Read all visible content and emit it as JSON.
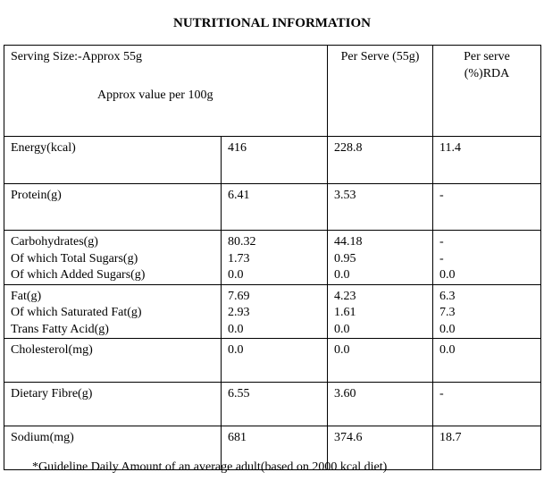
{
  "title": "NUTRITIONAL INFORMATION",
  "header": {
    "serving_size": "Serving Size:-Approx 55g",
    "per_100g": "Approx value per 100g",
    "per_serve": "Per Serve (55g)",
    "rda": [
      "Per serve",
      "(%)RDA"
    ]
  },
  "table": {
    "rows": [
      [
        [
          "Energy(kcal)"
        ],
        [
          "416"
        ],
        [
          "228.8"
        ],
        [
          "11.4"
        ]
      ],
      [
        [
          "Protein(g)"
        ],
        [
          "6.41"
        ],
        [
          "3.53"
        ],
        [
          "-"
        ]
      ],
      [
        [
          "Carbohydrates(g)",
          "Of which Total Sugars(g)",
          "Of which Added Sugars(g)"
        ],
        [
          "80.32",
          "1.73",
          "0.0"
        ],
        [
          "44.18",
          "0.95",
          "0.0"
        ],
        [
          "-",
          "-",
          "0.0"
        ]
      ],
      [
        [
          "Fat(g)",
          "Of which Saturated Fat(g)",
          "Trans Fatty Acid(g)"
        ],
        [
          "7.69",
          "2.93",
          "0.0"
        ],
        [
          "4.23",
          "1.61",
          "0.0"
        ],
        [
          "6.3",
          "7.3",
          "0.0"
        ]
      ],
      [
        [
          "Cholesterol(mg)"
        ],
        [
          "0.0"
        ],
        [
          "0.0"
        ],
        [
          "0.0"
        ]
      ],
      [
        [
          "Dietary Fibre(g)"
        ],
        [
          "6.55"
        ],
        [
          "3.60"
        ],
        [
          "-"
        ]
      ],
      [
        [
          "Sodium(mg)"
        ],
        [
          "681"
        ],
        [
          "374.6"
        ],
        [
          "18.7"
        ]
      ]
    ]
  },
  "footnote": "*Guideline Daily Amount of an average adult(based on 2000 kcal diet)"
}
